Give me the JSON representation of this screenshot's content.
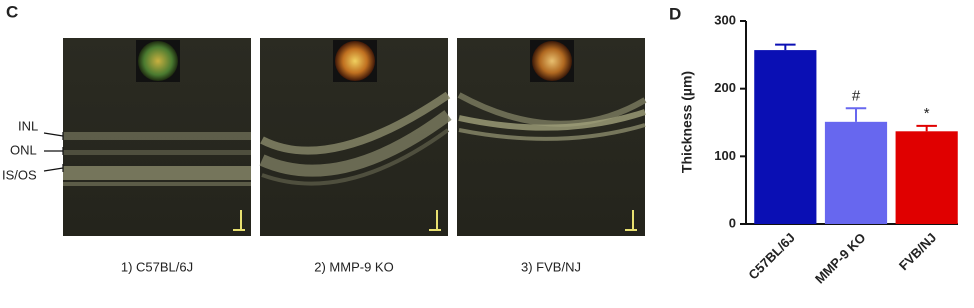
{
  "panel_c": {
    "label": "C",
    "layers": [
      "INL",
      "ONL",
      "IS/OS"
    ],
    "captions": [
      "1) C57BL/6J",
      "2) MMP-9 KO",
      "3) FVB/NJ"
    ]
  },
  "chart_data": {
    "type": "bar",
    "panel_label": "D",
    "y_label": "Thickness (µm)",
    "categories": [
      "C57BL/6J",
      "MMP-9 KO",
      "FVB/NJ"
    ],
    "values": [
      257,
      151,
      137
    ],
    "errors": [
      8,
      20,
      8
    ],
    "significance": [
      null,
      "#",
      "*"
    ],
    "colors": [
      "#0a0fb4",
      "#6767ef",
      "#e00000"
    ],
    "ylim": [
      0,
      300
    ],
    "yticks": [
      0,
      100,
      200,
      300
    ]
  }
}
